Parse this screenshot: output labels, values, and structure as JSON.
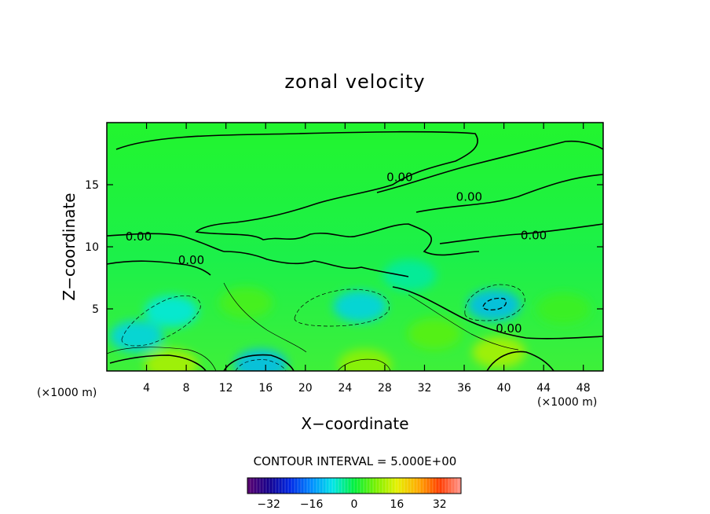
{
  "chart_data": {
    "type": "heatmap",
    "title": "zonal velocity",
    "xlabel": "X−coordinate",
    "ylabel": "Z−coordinate",
    "x_unit_label": "(×1000 m)",
    "x_unit_label_right": "(×1000 m)",
    "xlim": [
      0,
      50
    ],
    "ylim": [
      0,
      20
    ],
    "x_ticks": [
      4,
      8,
      12,
      16,
      20,
      24,
      28,
      32,
      36,
      40,
      44,
      48
    ],
    "y_ticks": [
      5,
      10,
      15
    ],
    "contour_interval_label": "CONTOUR INTERVAL = 5.000E+00",
    "contour_labels": [
      {
        "text": "0.00",
        "x": 29.5,
        "y": 15.3
      },
      {
        "text": "0.00",
        "x": 36.5,
        "y": 13.7
      },
      {
        "text": "0.00",
        "x": 43.0,
        "y": 10.6
      },
      {
        "text": "0.00",
        "x": 3.2,
        "y": 10.5
      },
      {
        "text": "0.00",
        "x": 8.5,
        "y": 8.6
      },
      {
        "text": "0.00",
        "x": 40.5,
        "y": 3.1
      }
    ],
    "colorbar": {
      "range": [
        -40,
        40
      ],
      "ticks": [
        -32,
        -16,
        0,
        16,
        32
      ],
      "tick_labels": [
        "−32",
        "−16",
        "0",
        "16",
        "32"
      ]
    },
    "field_extremes": [
      {
        "x": 3.0,
        "y": 2.8,
        "value": -10
      },
      {
        "x": 6.5,
        "y": 4.8,
        "value": -8
      },
      {
        "x": 15.5,
        "y": 0.5,
        "value": -12
      },
      {
        "x": 25.5,
        "y": 5.2,
        "value": -10
      },
      {
        "x": 30.5,
        "y": 7.7,
        "value": -5
      },
      {
        "x": 39.0,
        "y": 5.3,
        "value": -12
      },
      {
        "x": 6.5,
        "y": 0.5,
        "value": 12
      },
      {
        "x": 26.0,
        "y": 0.5,
        "value": 10
      },
      {
        "x": 39.5,
        "y": 1.5,
        "value": 12
      },
      {
        "x": 14.0,
        "y": 5.5,
        "value": 5
      },
      {
        "x": 33.0,
        "y": 3.0,
        "value": 6
      },
      {
        "x": 46.0,
        "y": 5.0,
        "value": 4
      }
    ]
  }
}
